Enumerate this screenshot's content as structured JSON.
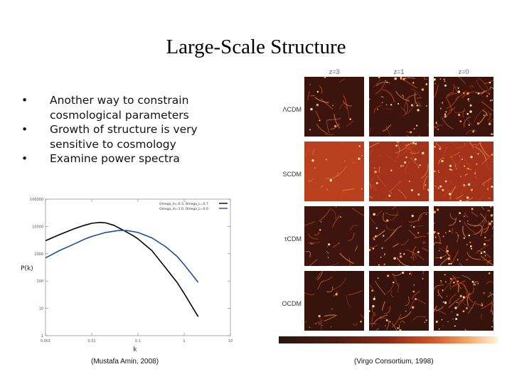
{
  "slide": {
    "title": "Large-Scale Structure",
    "bullets": [
      "Another way to constrain cosmological parameters",
      "Growth of structure is very sensitive to cosmology",
      "Examine power spectra"
    ],
    "caption_left": "(Mustafa Amin, 2008)",
    "caption_right": "(Virgo Consortium, 1998)"
  },
  "chart_data": {
    "type": "line",
    "xlabel": "k",
    "ylabel": "P(k)",
    "x_scale": "log",
    "y_scale": "log",
    "xlim": [
      0.001,
      10
    ],
    "ylim": [
      1,
      100000
    ],
    "x_ticks": [
      "0.001",
      "0.01",
      "0.1",
      "1",
      "10"
    ],
    "y_ticks": [
      "1",
      "10",
      "100",
      "1000",
      "10000",
      "100000"
    ],
    "legend_position": "top-right",
    "series": [
      {
        "name": "Omega_m=0.3, Omega_L=0.7",
        "color": "#000000",
        "x": [
          0.001,
          0.002,
          0.004,
          0.007,
          0.01,
          0.015,
          0.02,
          0.03,
          0.05,
          0.08,
          0.1,
          0.2,
          0.4,
          0.7,
          1,
          2
        ],
        "y": [
          3000,
          5000,
          8000,
          11000,
          13000,
          14000,
          13500,
          11000,
          7000,
          4500,
          3500,
          1300,
          300,
          90,
          35,
          5
        ]
      },
      {
        "name": "Omega_m=1.0, Omega_L=0.0",
        "color": "#1f4e9c",
        "x": [
          0.001,
          0.002,
          0.004,
          0.007,
          0.01,
          0.02,
          0.04,
          0.06,
          0.1,
          0.2,
          0.4,
          0.7,
          1,
          2
        ],
        "y": [
          700,
          1300,
          2200,
          3400,
          4300,
          6000,
          7200,
          7000,
          6000,
          3800,
          1800,
          800,
          400,
          90
        ]
      }
    ]
  },
  "simulation_grid": {
    "columns": [
      "z=3",
      "z=1",
      "z=0"
    ],
    "rows": [
      "ΛCDM",
      "SCDM",
      "τCDM",
      "OCDM"
    ]
  }
}
